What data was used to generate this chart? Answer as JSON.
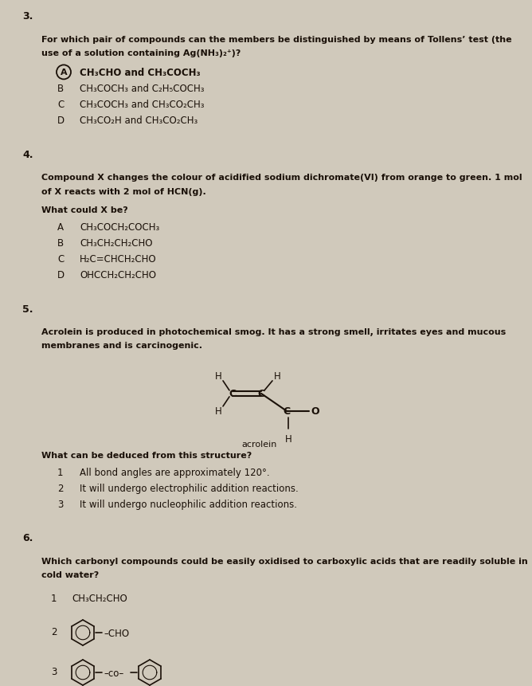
{
  "bg_color": "#d0c9bb",
  "text_color": "#1a1008",
  "page_width": 6.68,
  "page_height": 8.62,
  "dpi": 100,
  "q3_number": "3.",
  "q3_question_line1": "For which pair of compounds can the members be distinguished by means of Tollens’ test (the",
  "q3_question_line2": "use of a solution containing Ag(NH₃)₂⁺)?",
  "q3_options": [
    [
      "A",
      "CH₃CHO and CH₃COCH₃",
      true
    ],
    [
      "B",
      "CH₃COCH₃ and C₂H₅COCH₃",
      false
    ],
    [
      "C",
      "CH₃COCH₃ and CH₃CO₂CH₃",
      false
    ],
    [
      "D",
      "CH₃CO₂H and CH₃CO₂CH₃",
      false
    ]
  ],
  "q4_number": "4.",
  "q4_intro_line1": "Compound X changes the colour of acidified sodium dichromate(VI) from orange to green. 1 mol",
  "q4_intro_line2": "of X reacts with 2 mol of HCN(g).",
  "q4_sub": "What could X be?",
  "q4_options": [
    [
      "A",
      "CH₃COCH₂COCH₃"
    ],
    [
      "B",
      "CH₃CH₂CH₂CHO"
    ],
    [
      "C",
      "H₂C=CHCH₂CHO"
    ],
    [
      "D",
      "OHCCH₂CH₂CHO"
    ]
  ],
  "q5_number": "5.",
  "q5_intro_line1": "Acrolein is produced in photochemical smog. It has a strong smell, irritates eyes and mucous",
  "q5_intro_line2": "membranes and is carcinogenic.",
  "q5_label": "acrolein",
  "q5_sub": "What can be deduced from this structure?",
  "q5_options": [
    [
      "1",
      "All bond angles are approximately 120°."
    ],
    [
      "2",
      "It will undergo electrophilic addition reactions."
    ],
    [
      "3",
      "It will undergo nucleophilic addition reactions."
    ]
  ],
  "q6_number": "6.",
  "q6_question_line1": "Which carbonyl compounds could be easily oxidised to carboxylic acids that are readily soluble in",
  "q6_question_line2": "cold water?",
  "q6_opt1": "CH₃CH₂CHO"
}
